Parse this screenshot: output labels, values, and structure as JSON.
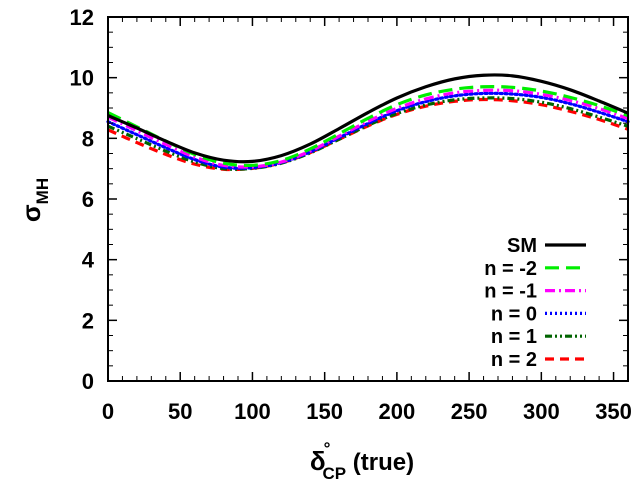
{
  "chart_data": {
    "type": "line",
    "xlabel": {
      "main": "δ",
      "sup": "°",
      "sub": "CP",
      "rest": " (true)"
    },
    "ylabel": {
      "main": "σ",
      "sub": "MH"
    },
    "xlim": [
      0,
      360
    ],
    "ylim": [
      0,
      12
    ],
    "xticks": [
      0,
      50,
      100,
      150,
      200,
      250,
      300,
      350
    ],
    "yticks": [
      0,
      2,
      4,
      6,
      8,
      10,
      12
    ],
    "grid": false,
    "legend_position": "bottom-right",
    "x": [
      0,
      20,
      40,
      60,
      80,
      100,
      120,
      140,
      160,
      180,
      200,
      220,
      240,
      260,
      280,
      300,
      320,
      340,
      360
    ],
    "series": [
      {
        "name": "SM",
        "color": "#000000",
        "dash": "solid",
        "values": [
          8.75,
          8.34,
          7.91,
          7.52,
          7.28,
          7.24,
          7.43,
          7.81,
          8.32,
          8.85,
          9.33,
          9.7,
          9.96,
          10.08,
          10.06,
          9.88,
          9.6,
          9.23,
          8.83
        ]
      },
      {
        "name": "n = -2",
        "color": "#00ee00",
        "dash": "long-dash",
        "values": [
          8.85,
          8.38,
          7.91,
          7.47,
          7.18,
          7.11,
          7.27,
          7.65,
          8.15,
          8.66,
          9.11,
          9.43,
          9.62,
          9.7,
          9.68,
          9.56,
          9.35,
          9.08,
          8.75
        ]
      },
      {
        "name": "n = -1",
        "color": "#ff00ff",
        "dash": "dash-dot",
        "values": [
          8.7,
          8.25,
          7.8,
          7.38,
          7.11,
          7.06,
          7.22,
          7.58,
          8.07,
          8.56,
          8.99,
          9.3,
          9.5,
          9.58,
          9.57,
          9.45,
          9.25,
          8.98,
          8.65
        ]
      },
      {
        "name": "n = 0",
        "color": "#0000ff",
        "dash": "dotted",
        "values": [
          8.55,
          8.12,
          7.69,
          7.3,
          7.05,
          7.03,
          7.2,
          7.55,
          8.02,
          8.49,
          8.91,
          9.21,
          9.4,
          9.48,
          9.46,
          9.35,
          9.14,
          8.86,
          8.55
        ]
      },
      {
        "name": "n = 1",
        "color": "#006400",
        "dash": "dash-dot-dot",
        "values": [
          8.4,
          7.99,
          7.58,
          7.22,
          7.0,
          7.01,
          7.18,
          7.52,
          7.97,
          8.43,
          8.82,
          9.1,
          9.27,
          9.33,
          9.31,
          9.19,
          8.98,
          8.7,
          8.4
        ]
      },
      {
        "name": "n = 2",
        "color": "#ff0000",
        "dash": "short-dash",
        "values": [
          8.28,
          7.86,
          7.47,
          7.15,
          6.98,
          7.01,
          7.19,
          7.53,
          7.97,
          8.41,
          8.79,
          9.06,
          9.22,
          9.28,
          9.24,
          9.11,
          8.89,
          8.62,
          8.3
        ]
      }
    ]
  }
}
